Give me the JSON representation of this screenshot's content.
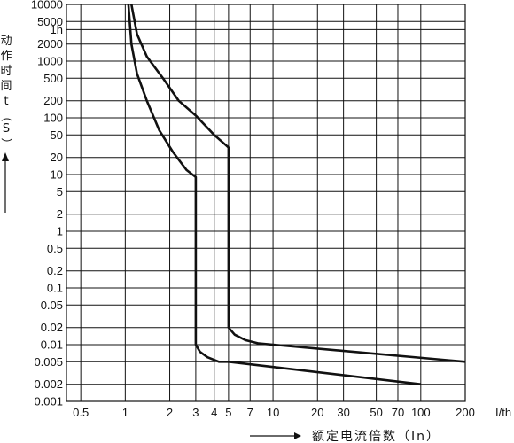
{
  "chart_data": {
    "type": "line",
    "title": "",
    "xlabel": "额定电流倍数（In）",
    "ylabel": "动作时间 t（S）",
    "x_unit_label": "I/th",
    "x_scale": "log",
    "y_scale": "log",
    "grid": true,
    "xlim": [
      0.4,
      200
    ],
    "ylim": [
      0.001,
      10000
    ],
    "x_ticks": [
      0.5,
      1,
      2,
      3,
      4,
      5,
      7,
      10,
      20,
      30,
      50,
      70,
      100,
      200
    ],
    "x_tick_labels": [
      "0.5",
      "1",
      "2",
      "3",
      "4",
      "5",
      "7",
      "10",
      "20",
      "30",
      "50",
      "70",
      "100",
      "200"
    ],
    "y_ticks": [
      0.001,
      0.002,
      0.005,
      0.01,
      0.02,
      0.05,
      0.1,
      0.2,
      0.5,
      1,
      2,
      5,
      10,
      20,
      50,
      100,
      200,
      500,
      1000,
      2000,
      3600,
      5000,
      10000
    ],
    "y_tick_labels": [
      "0.001",
      "0.002",
      "0.005",
      "0.01",
      "0.02",
      "0.05",
      "0.1",
      "0.2",
      "0.5",
      "1",
      "2",
      "5",
      "10",
      "20",
      "50",
      "100",
      "200",
      "500",
      "1000",
      "2000",
      "1h",
      "5000",
      "10000"
    ],
    "series": [
      {
        "points": [
          [
            1.05,
            10000
          ],
          [
            1.1,
            2000
          ],
          [
            1.2,
            600
          ],
          [
            1.4,
            200
          ],
          [
            1.7,
            60
          ],
          [
            2.1,
            25
          ],
          [
            2.6,
            12
          ],
          [
            3.0,
            9
          ],
          [
            3.0,
            0.01
          ],
          [
            3.2,
            0.0075
          ],
          [
            3.6,
            0.006
          ],
          [
            4.3,
            0.005
          ],
          [
            5.0,
            0.005
          ],
          [
            100,
            0.002
          ]
        ]
      },
      {
        "points": [
          [
            1.1,
            10000
          ],
          [
            1.2,
            3000
          ],
          [
            1.4,
            1200
          ],
          [
            1.8,
            500
          ],
          [
            2.3,
            200
          ],
          [
            3.0,
            110
          ],
          [
            4.0,
            50
          ],
          [
            5.0,
            30
          ],
          [
            5.0,
            0.02
          ],
          [
            5.5,
            0.015
          ],
          [
            6.5,
            0.012
          ],
          [
            8.0,
            0.0105
          ],
          [
            10,
            0.01
          ],
          [
            200,
            0.005
          ]
        ]
      }
    ]
  }
}
